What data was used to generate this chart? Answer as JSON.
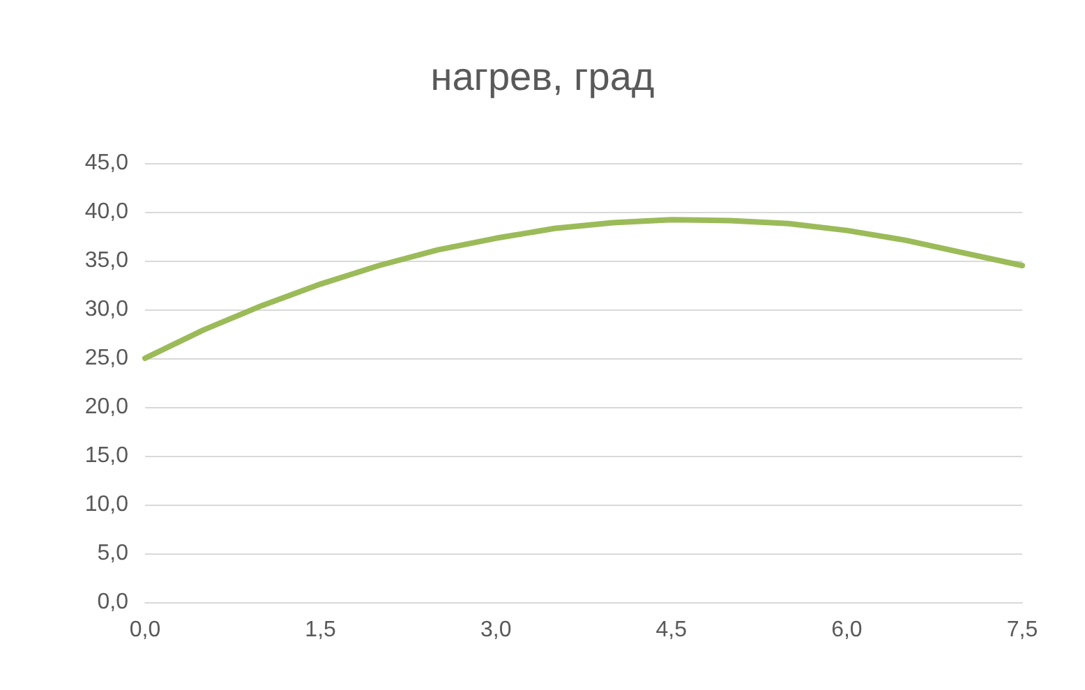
{
  "chart_data": {
    "type": "line",
    "title": "нагрев, град",
    "x": [
      0,
      0.5,
      1,
      1.5,
      2,
      2.5,
      3,
      3.5,
      4,
      4.5,
      5,
      5.5,
      6,
      6.5,
      7,
      7.5
    ],
    "series": [
      {
        "color": "#9bbb59",
        "values": [
          25.0,
          27.9,
          30.4,
          32.6,
          34.5,
          36.1,
          37.3,
          38.3,
          38.9,
          39.2,
          39.1,
          38.8,
          38.1,
          37.1,
          35.8,
          34.5
        ]
      }
    ],
    "xlim": [
      0,
      7.5
    ],
    "xticks": [
      {
        "value": 0,
        "label": "0,0"
      },
      {
        "value": 1.5,
        "label": "1,5"
      },
      {
        "value": 3,
        "label": "3,0"
      },
      {
        "value": 4.5,
        "label": "4,5"
      },
      {
        "value": 6,
        "label": "6,0"
      },
      {
        "value": 7.5,
        "label": "7,5"
      }
    ],
    "ylim": [
      0,
      45
    ],
    "yticks": [
      {
        "value": 0,
        "label": "0,0"
      },
      {
        "value": 5,
        "label": "5,0"
      },
      {
        "value": 10,
        "label": "10,0"
      },
      {
        "value": 15,
        "label": "15,0"
      },
      {
        "value": 20,
        "label": "20,0"
      },
      {
        "value": 25,
        "label": "25,0"
      },
      {
        "value": 30,
        "label": "30,0"
      },
      {
        "value": 35,
        "label": "35,0"
      },
      {
        "value": 40,
        "label": "40,0"
      },
      {
        "value": 45,
        "label": "45,0"
      }
    ],
    "grid": "y",
    "marker": "none",
    "line_style": "solid"
  }
}
